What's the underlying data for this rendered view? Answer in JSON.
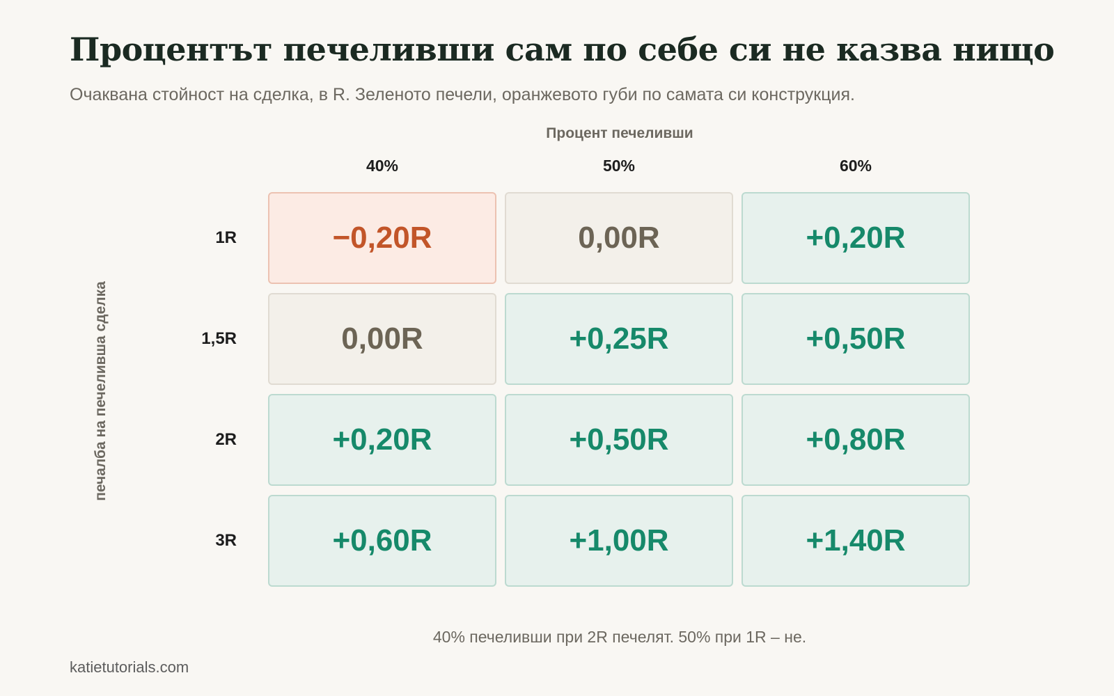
{
  "title": "Процентът печеливши сам по себе си не казва нищо",
  "subtitle": "Очаквана стойност на сделка, в R. Зеленото печели, оранжевото губи по самата си конструкция.",
  "chart_data": {
    "type": "heatmap",
    "col_axis_label": "Процент печеливши",
    "row_axis_label": "печалба на печеливша сделка",
    "columns": [
      "40%",
      "50%",
      "60%"
    ],
    "rows": [
      "1R",
      "1,5R",
      "2R",
      "3R"
    ],
    "win_rates": [
      0.4,
      0.5,
      0.6
    ],
    "win_sizes_R": [
      1,
      1.5,
      2,
      3
    ],
    "values": [
      [
        -0.2,
        0.0,
        0.2
      ],
      [
        0.0,
        0.25,
        0.5
      ],
      [
        0.2,
        0.5,
        0.8
      ],
      [
        0.6,
        1.0,
        1.4
      ]
    ],
    "labels": [
      [
        "−0,20R",
        "0,00R",
        "+0,20R"
      ],
      [
        "0,00R",
        "+0,25R",
        "+0,50R"
      ],
      [
        "+0,20R",
        "+0,50R",
        "+0,80R"
      ],
      [
        "+0,60R",
        "+1,00R",
        "+1,40R"
      ]
    ],
    "colors": {
      "positive": "#16896a",
      "zero": "#6c6455",
      "negative": "#c25529"
    }
  },
  "footnote": "40% печеливши при 2R печелят. 50% при 1R – не.",
  "credit": "katietutorials.com"
}
